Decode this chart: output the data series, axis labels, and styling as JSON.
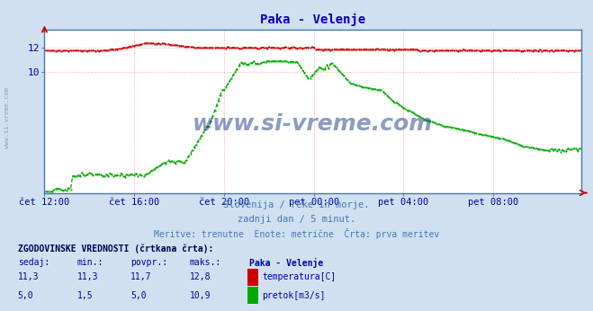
{
  "title": "Paka - Velenje",
  "title_color": "#0000cc",
  "bg_color": "#d0e0f0",
  "plot_bg_color": "#ffffff",
  "grid_color": "#ffb0b0",
  "xlabel_color": "#0000aa",
  "ylabel_color": "#0000aa",
  "x_tick_labels": [
    "čet 12:00",
    "čet 16:00",
    "čet 20:00",
    "pet 00:00",
    "pet 04:00",
    "pet 08:00"
  ],
  "x_tick_positions": [
    0,
    48,
    96,
    144,
    192,
    240
  ],
  "y_ticks": [
    10,
    12
  ],
  "ylim": [
    0,
    13.5
  ],
  "xlim": [
    0,
    287
  ],
  "subtitle_lines": [
    "Slovenija / reke in morje.",
    "zadnji dan / 5 minut.",
    "Meritve: trenutne  Enote: metrične  Črta: prva meritev"
  ],
  "subtitle_color": "#4477bb",
  "watermark": "www.si-vreme.com",
  "watermark_color": "#1a3a8a",
  "table_header": "ZGODOVINSKE VREDNOSTI (črtkana črta):",
  "table_cols": [
    "sedaj:",
    "min.:",
    "povpr.:",
    "maks.:",
    "Paka - Velenje"
  ],
  "table_row1": [
    "11,3",
    "11,3",
    "11,7",
    "12,8",
    "temperatura[C]"
  ],
  "table_row2": [
    "5,0",
    "1,5",
    "5,0",
    "10,9",
    "pretok[m3/s]"
  ],
  "temp_color": "#cc0000",
  "flow_color": "#00aa00",
  "sidebar_color": "#4477bb",
  "border_color": "#4477bb",
  "axis_color": "#4477bb"
}
